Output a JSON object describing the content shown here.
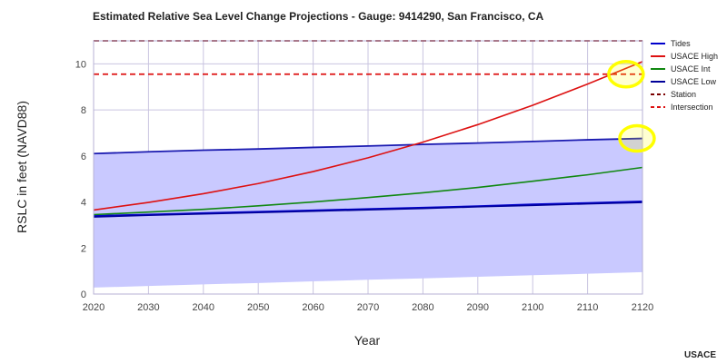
{
  "chart_data": {
    "type": "line",
    "title": "Estimated Relative Sea Level Change Projections - Gauge: 9414290, San Francisco, CA",
    "xlabel": "Year",
    "ylabel": "RSLC in feet (NAVD88)",
    "xlim": [
      2020,
      2120
    ],
    "ylim": [
      0,
      11
    ],
    "x_ticks": [
      "2020",
      "2030",
      "2040",
      "2050",
      "2060",
      "2070",
      "2080",
      "2090",
      "2100",
      "2110",
      "2120"
    ],
    "y_ticks": [
      "0",
      "2",
      "4",
      "6",
      "8",
      "10"
    ],
    "grid": true,
    "legend_position": "right",
    "x": [
      2020,
      2030,
      2040,
      2050,
      2060,
      2070,
      2080,
      2090,
      2100,
      2110,
      2120
    ],
    "tides_band": {
      "name": "Tides",
      "lower": [
        0.28,
        0.35,
        0.42,
        0.48,
        0.55,
        0.62,
        0.68,
        0.75,
        0.82,
        0.88,
        0.95
      ],
      "upper": [
        6.1,
        6.18,
        6.25,
        6.3,
        6.37,
        6.43,
        6.5,
        6.56,
        6.63,
        6.7,
        6.76
      ]
    },
    "series": [
      {
        "name": "Tides",
        "color": "#0000cc",
        "style": "solid",
        "values": [
          3.4,
          3.46,
          3.52,
          3.58,
          3.64,
          3.7,
          3.76,
          3.82,
          3.9,
          3.96,
          4.03
        ]
      },
      {
        "name": "USACE High",
        "color": "#dd1111",
        "style": "solid",
        "values": [
          3.65,
          3.98,
          4.36,
          4.8,
          5.32,
          5.92,
          6.6,
          7.36,
          8.2,
          9.12,
          10.1
        ]
      },
      {
        "name": "USACE Int",
        "color": "#118811",
        "style": "solid",
        "values": [
          3.45,
          3.56,
          3.68,
          3.83,
          4.0,
          4.19,
          4.4,
          4.63,
          4.9,
          5.18,
          5.5
        ]
      },
      {
        "name": "USACE Low",
        "color": "#000099",
        "style": "solid",
        "values": [
          3.35,
          3.42,
          3.48,
          3.54,
          3.6,
          3.66,
          3.72,
          3.79,
          3.85,
          3.92,
          3.98
        ]
      },
      {
        "name": "Station",
        "color": "#7a0000",
        "style": "dashed",
        "values": [
          11,
          11,
          11,
          11,
          11,
          11,
          11,
          11,
          11,
          11,
          11
        ]
      },
      {
        "name": "Intersection",
        "color": "#dd1111",
        "style": "dashed",
        "values": [
          9.55,
          9.55,
          9.55,
          9.55,
          9.55,
          9.55,
          9.55,
          9.55,
          9.55,
          9.55,
          9.55
        ]
      }
    ],
    "highlights": [
      {
        "x": 2117,
        "y": 9.55,
        "color": "#ffff00"
      },
      {
        "x": 2119,
        "y": 6.76,
        "color": "#ffff00"
      }
    ],
    "credit": "USACE"
  }
}
